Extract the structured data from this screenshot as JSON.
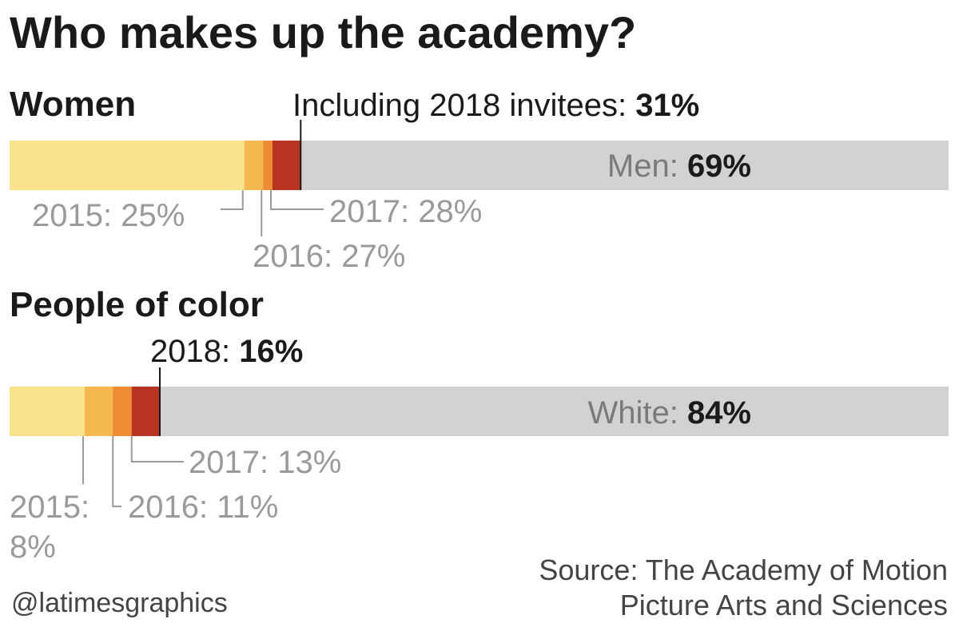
{
  "title": "Who makes up the academy?",
  "source_line1": "Source: The Academy of Motion",
  "source_line2": "Picture Arts and Sciences",
  "credit": "@latimesgraphics",
  "colors": {
    "segment_2015": "#f9e38c",
    "segment_2016": "#f5b84f",
    "segment_2017": "#ed8c32",
    "segment_2018": "#b83320",
    "rest": "#d1d2d4",
    "label_gray": "#9a9a9a",
    "rest_label": "#7a7a7a",
    "dark": "#1a1a1a"
  },
  "chart_data": [
    {
      "type": "bar",
      "group": "Women",
      "heading": "Women",
      "unit": "%",
      "xlim": [
        0,
        100
      ],
      "cumulative": [
        {
          "year": "2015",
          "value": 25,
          "label": "2015: 25%"
        },
        {
          "year": "2016",
          "value": 27,
          "label": "2016: 27%"
        },
        {
          "year": "2017",
          "value": 28,
          "label": "2017: 28%"
        },
        {
          "year": "2018",
          "value": 31,
          "label_prefix": "Including 2018 invitees: ",
          "label_value": "31%"
        }
      ],
      "remainder": {
        "value": 69,
        "label_prefix": "Men: ",
        "label_value": "69%"
      }
    },
    {
      "type": "bar",
      "group": "People of color",
      "heading": "People of color",
      "unit": "%",
      "xlim": [
        0,
        100
      ],
      "cumulative": [
        {
          "year": "2015",
          "value": 8,
          "label_line1": "2015:",
          "label_line2": "8%"
        },
        {
          "year": "2016",
          "value": 11,
          "label": "2016: 11%"
        },
        {
          "year": "2017",
          "value": 13,
          "label": "2017: 13%"
        },
        {
          "year": "2018",
          "value": 16,
          "label_prefix": "2018: ",
          "label_value": "16%"
        }
      ],
      "remainder": {
        "value": 84,
        "label_prefix": "White: ",
        "label_value": "84%"
      }
    }
  ]
}
